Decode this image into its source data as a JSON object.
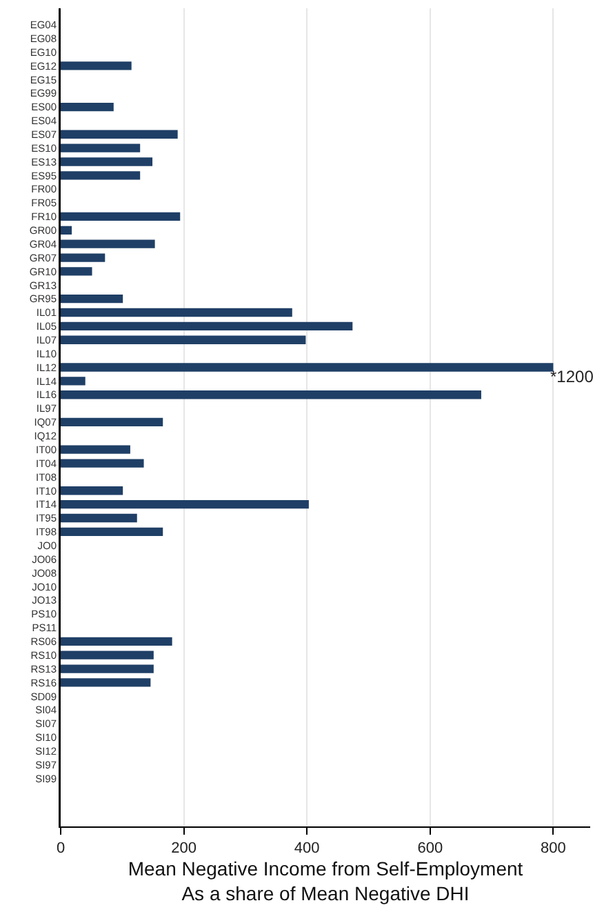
{
  "chart_data": {
    "type": "bar",
    "orientation": "horizontal",
    "xlabel": "Mean Negative Income from Self-Employment\nAs a share of Mean Negative DHI",
    "categories": [
      "EG04",
      "EG08",
      "EG10",
      "EG12",
      "EG15",
      "EG99",
      "ES00",
      "ES04",
      "ES07",
      "ES10",
      "ES13",
      "ES95",
      "FR00",
      "FR05",
      "FR10",
      "GR00",
      "GR04",
      "GR07",
      "GR10",
      "GR13",
      "GR95",
      "IL01",
      "IL05",
      "IL07",
      "IL10",
      "IL12",
      "IL14",
      "IL16",
      "IL97",
      "IQ07",
      "IQ12",
      "IT00",
      "IT04",
      "IT08",
      "IT10",
      "IT14",
      "IT95",
      "IT98",
      "JO0",
      "JO06",
      "JO08",
      "JO10",
      "JO13",
      "PS10",
      "PS11",
      "RS06",
      "RS10",
      "RS13",
      "RS16",
      "SD09",
      "SI04",
      "SI07",
      "SI10",
      "SI12",
      "SI97",
      "SI99"
    ],
    "values": [
      null,
      null,
      null,
      115,
      null,
      null,
      86,
      null,
      190,
      129,
      149,
      129,
      null,
      null,
      194,
      18,
      153,
      72,
      51,
      null,
      101,
      376,
      474,
      398,
      null,
      800,
      40,
      683,
      null,
      166,
      null,
      113,
      135,
      null,
      101,
      403,
      124,
      166,
      null,
      null,
      null,
      null,
      null,
      null,
      null,
      181,
      151,
      151,
      146,
      null,
      null,
      null,
      null,
      null,
      null,
      null
    ],
    "color": "#1f3f66",
    "xlim": [
      0,
      860
    ],
    "xticks": [
      0,
      200,
      400,
      600,
      800
    ],
    "grid": "x",
    "legend": false,
    "annotations": [
      {
        "text": "*1200",
        "x": 800,
        "y": "IL12"
      }
    ]
  }
}
